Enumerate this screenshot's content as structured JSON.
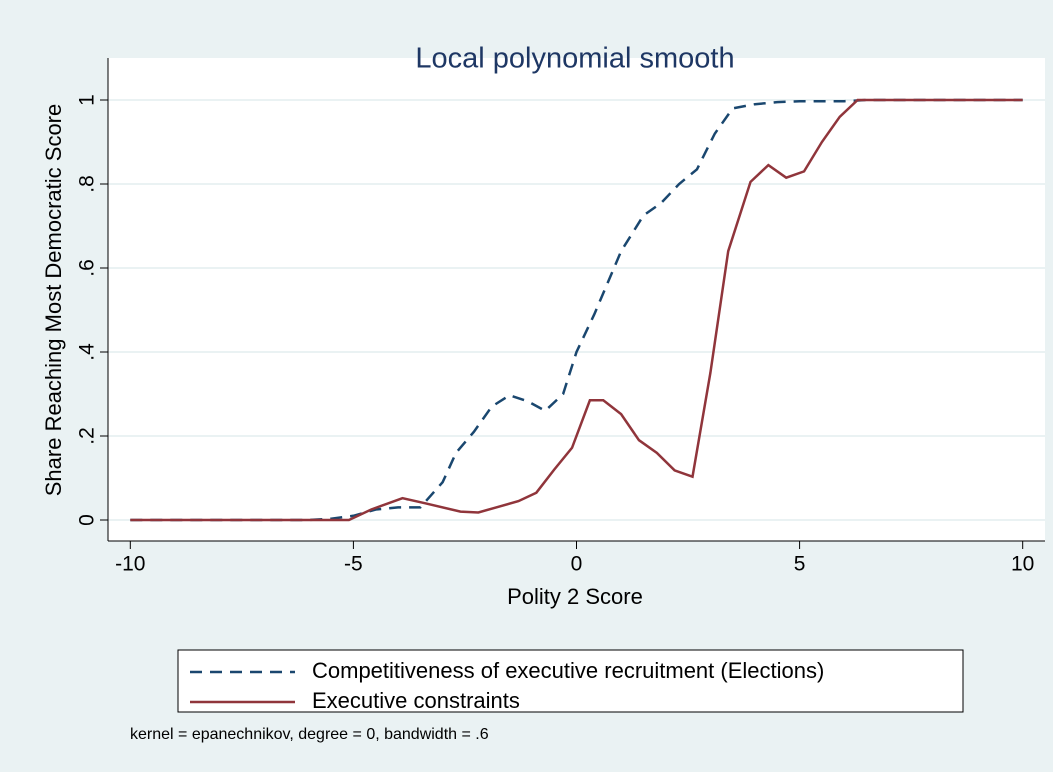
{
  "chart_data": {
    "type": "line",
    "title": "Local polynomial smooth",
    "x_label": "Polity 2 Score",
    "y_label": "Share Reaching Most Democratic Score",
    "note": "kernel = epanechnikov, degree = 0, bandwidth = .6",
    "xlim": [
      -10.5,
      10.5
    ],
    "ylim": [
      -0.05,
      1.1
    ],
    "xticks": [
      -10,
      -5,
      0,
      5,
      10
    ],
    "yticks": [
      0,
      {
        "value": 0.2,
        "label": ".2"
      },
      {
        "value": 0.4,
        "label": ".4"
      },
      {
        "value": 0.6,
        "label": ".6"
      },
      {
        "value": 0.8,
        "label": ".8"
      },
      1
    ],
    "grid": true,
    "series": [
      {
        "name": "Competitiveness of executive recruitment (Elections)",
        "color": "#1a476f",
        "dash": true,
        "x": [
          -10,
          -6,
          -5.5,
          -5,
          -4.5,
          -4,
          -3.5,
          -3,
          -2.7,
          -2.3,
          -1.9,
          -1.5,
          -1.1,
          -0.7,
          -0.3,
          0,
          0.4,
          1,
          1.5,
          1.9,
          2.3,
          2.7,
          3.1,
          3.5,
          4,
          4.5,
          5,
          6,
          6.5,
          10
        ],
        "values": [
          0,
          0,
          0.003,
          0.01,
          0.025,
          0.03,
          0.03,
          0.09,
          0.16,
          0.21,
          0.27,
          0.297,
          0.283,
          0.26,
          0.3,
          0.4,
          0.49,
          0.64,
          0.725,
          0.755,
          0.8,
          0.835,
          0.92,
          0.98,
          0.99,
          0.995,
          0.997,
          0.997,
          1,
          1
        ]
      },
      {
        "name": "Executive constraints",
        "color": "#90353b",
        "dash": false,
        "x": [
          -10,
          -5.5,
          -5.1,
          -4.6,
          -3.9,
          -3.4,
          -2.6,
          -2.2,
          -1.8,
          -1.3,
          -0.9,
          -0.5,
          -0.1,
          0.3,
          0.6,
          1,
          1.4,
          1.8,
          2.2,
          2.6,
          3,
          3.4,
          3.9,
          4.3,
          4.7,
          5.1,
          5.5,
          5.9,
          6.3,
          10
        ],
        "values": [
          0,
          0,
          0,
          0.025,
          0.052,
          0.04,
          0.02,
          0.018,
          0.03,
          0.045,
          0.065,
          0.12,
          0.172,
          0.285,
          0.285,
          0.252,
          0.19,
          0.16,
          0.118,
          0.103,
          0.35,
          0.64,
          0.805,
          0.845,
          0.815,
          0.83,
          0.9,
          0.96,
          1,
          1
        ]
      }
    ]
  }
}
